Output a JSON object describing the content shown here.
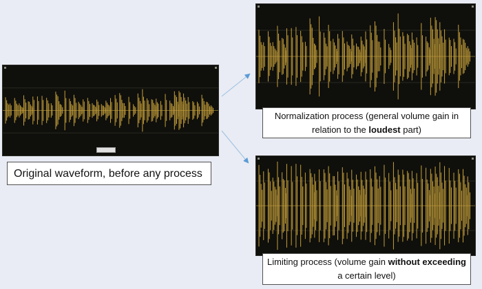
{
  "colors": {
    "background": "#e9ecf4",
    "panel": "#0f0f0c",
    "waveform": "#c7a13a",
    "arrow": "#5b9bd5"
  },
  "captions": {
    "original": "Original waveform, before any process",
    "normalization": {
      "before": "Normalization process (general volume gain in relation to the ",
      "bold": "loudest",
      "after": " part)"
    },
    "limiting": {
      "before": "Limiting process (volume gain ",
      "bold": "without exceeding",
      "after": " a certain level)"
    }
  },
  "icons": [
    "corner-handle-icon",
    "arrow-icon"
  ]
}
